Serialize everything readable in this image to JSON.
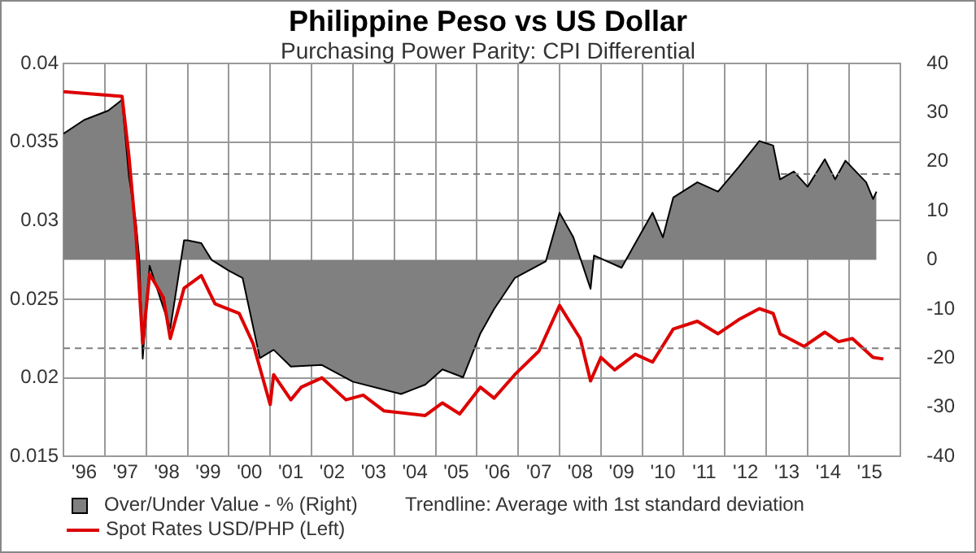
{
  "chart_data": {
    "type": "line",
    "title": "Philippine Peso vs US Dollar",
    "subtitle": "Purchasing Power Parity: CPI Differential",
    "xlim": [
      "1996-01",
      "2016-04"
    ],
    "xticks": [
      {
        "value": "1996-07",
        "label": "'96"
      },
      {
        "value": "1997",
        "label": null
      },
      {
        "value": "1997-07",
        "label": "'97"
      },
      {
        "value": "1998",
        "label": null
      },
      {
        "value": "1998-07",
        "label": "'98"
      },
      {
        "value": "1999",
        "label": null
      },
      {
        "value": "1999-07",
        "label": "'99"
      },
      {
        "value": "2000",
        "label": null
      },
      {
        "value": "2000-07",
        "label": "'00"
      },
      {
        "value": "2001",
        "label": null
      },
      {
        "value": "2001-07",
        "label": "'01"
      },
      {
        "value": "2002",
        "label": null
      },
      {
        "value": "2002-07",
        "label": "'02"
      },
      {
        "value": "2003",
        "label": null
      },
      {
        "value": "2003-07",
        "label": "'03"
      },
      {
        "value": "2004",
        "label": null
      },
      {
        "value": "2004-07",
        "label": "'04"
      },
      {
        "value": "2005",
        "label": null
      },
      {
        "value": "2005-07",
        "label": "'05"
      },
      {
        "value": "2006",
        "label": null
      },
      {
        "value": "2006-07",
        "label": "'06"
      },
      {
        "value": "2007",
        "label": null
      },
      {
        "value": "2007-07",
        "label": "'07"
      },
      {
        "value": "2008",
        "label": null
      },
      {
        "value": "2008-07",
        "label": "'08"
      },
      {
        "value": "2009",
        "label": null
      },
      {
        "value": "2009-07",
        "label": "'09"
      },
      {
        "value": "2010",
        "label": null
      },
      {
        "value": "2010-07",
        "label": "'10"
      },
      {
        "value": "2011",
        "label": null
      },
      {
        "value": "2011-07",
        "label": "'11"
      },
      {
        "value": "2012",
        "label": null
      },
      {
        "value": "2012-07",
        "label": "'12"
      },
      {
        "value": "2013",
        "label": null
      },
      {
        "value": "2013-07",
        "label": "'13"
      },
      {
        "value": "2014",
        "label": null
      },
      {
        "value": "2014-07",
        "label": "'14"
      },
      {
        "value": "2015",
        "label": null
      },
      {
        "value": "2015-07",
        "label": "'15"
      }
    ],
    "ylim": [
      0.015,
      0.04
    ],
    "yticks": [
      0.015,
      0.02,
      0.025,
      0.03,
      0.035,
      0.04
    ],
    "y2lim": [
      -40,
      40
    ],
    "y2ticks": [
      -40,
      -30,
      -20,
      -10,
      0,
      10,
      20,
      30,
      40
    ],
    "grid": true,
    "legend": "bottom",
    "marker": "none",
    "ref_lines": [
      {
        "axis": "y2",
        "value": 17.5,
        "color": "#808080",
        "line_style": "dashed"
      },
      {
        "axis": "y2",
        "value": -18,
        "color": "#808080",
        "line_style": "dashed"
      }
    ],
    "annotations": [
      "Trendline: Average with 1st standard deviation"
    ],
    "series": [
      {
        "name": "Over/Under Value - %  (Right)",
        "type": "area",
        "axis": "y2",
        "color": "#808080",
        "x": [
          "1996-01",
          "1996-07",
          "1997-02",
          "1997-06",
          "1997-08",
          "1997-10",
          "1997-11",
          "1997-12",
          "1998-02",
          "1998-08",
          "1998-12",
          "1999-01",
          "1999-05",
          "1999-08",
          "2000-01",
          "2000-05",
          "2000-10",
          "2001-02",
          "2001-07",
          "2002-04",
          "2003-01",
          "2004-03",
          "2004-10",
          "2005-03",
          "2005-09",
          "2006-02",
          "2006-06",
          "2006-12",
          "2007-09",
          "2008-01",
          "2008-05",
          "2008-10",
          "2008-11",
          "2009-07",
          "2009-11",
          "2010-04",
          "2010-07",
          "2010-10",
          "2011-05",
          "2011-11",
          "2012-05",
          "2012-11",
          "2013-03",
          "2013-05",
          "2013-09",
          "2014-01",
          "2014-06",
          "2014-09",
          "2014-12",
          "2015-06",
          "2015-08",
          "2015-09"
        ],
        "values": [
          25.7,
          28.5,
          30.4,
          32.6,
          17,
          7.8,
          0.3,
          -20.1,
          -1.2,
          -14,
          4,
          4,
          3.4,
          0,
          -2.2,
          -3.7,
          -20,
          -18.3,
          -21.7,
          -21.4,
          -24.8,
          -27.3,
          -25.4,
          -22.3,
          -23.9,
          -15,
          -10,
          -3.7,
          -0.3,
          9.6,
          4.6,
          -5.9,
          0.9,
          -1.6,
          3.4,
          9.6,
          4.6,
          12.7,
          15.8,
          13.9,
          18.9,
          24.2,
          23.3,
          16.4,
          18,
          14.9,
          20.5,
          16.4,
          20.2,
          15.8,
          12.4,
          13.9
        ]
      },
      {
        "name": "Spot Rates USD/PHP  (Left)",
        "type": "line",
        "axis": "y",
        "color": "#dd0000",
        "x": [
          "1996-01",
          "1997-06",
          "1997-08",
          "1997-10",
          "1997-12",
          "1998-02",
          "1998-06",
          "1998-08",
          "1998-12",
          "1999-05",
          "1999-09",
          "2000-04",
          "2000-08",
          "2001-01",
          "2001-02",
          "2001-07",
          "2001-10",
          "2002-04",
          "2002-11",
          "2003-04",
          "2003-10",
          "2004-10",
          "2005-03",
          "2005-08",
          "2006-02",
          "2006-06",
          "2006-12",
          "2007-07",
          "2008-01",
          "2008-07",
          "2008-10",
          "2009-01",
          "2009-05",
          "2009-11",
          "2010-04",
          "2010-10",
          "2011-05",
          "2011-11",
          "2012-05",
          "2012-11",
          "2013-03",
          "2013-05",
          "2013-12",
          "2014-06",
          "2014-10",
          "2015-02",
          "2015-08",
          "2015-11"
        ],
        "values": [
          0.0382,
          0.0379,
          0.0341,
          0.0292,
          0.0222,
          0.0266,
          0.0251,
          0.0225,
          0.0257,
          0.0265,
          0.0247,
          0.0241,
          0.0222,
          0.0183,
          0.0202,
          0.0186,
          0.0194,
          0.02,
          0.0186,
          0.0189,
          0.0179,
          0.0176,
          0.0184,
          0.0177,
          0.0194,
          0.0187,
          0.0202,
          0.0217,
          0.0246,
          0.0225,
          0.0198,
          0.0213,
          0.0205,
          0.0215,
          0.021,
          0.0231,
          0.0236,
          0.0228,
          0.0237,
          0.0244,
          0.0241,
          0.0228,
          0.022,
          0.0229,
          0.0223,
          0.0225,
          0.0213,
          0.0212
        ]
      }
    ]
  }
}
